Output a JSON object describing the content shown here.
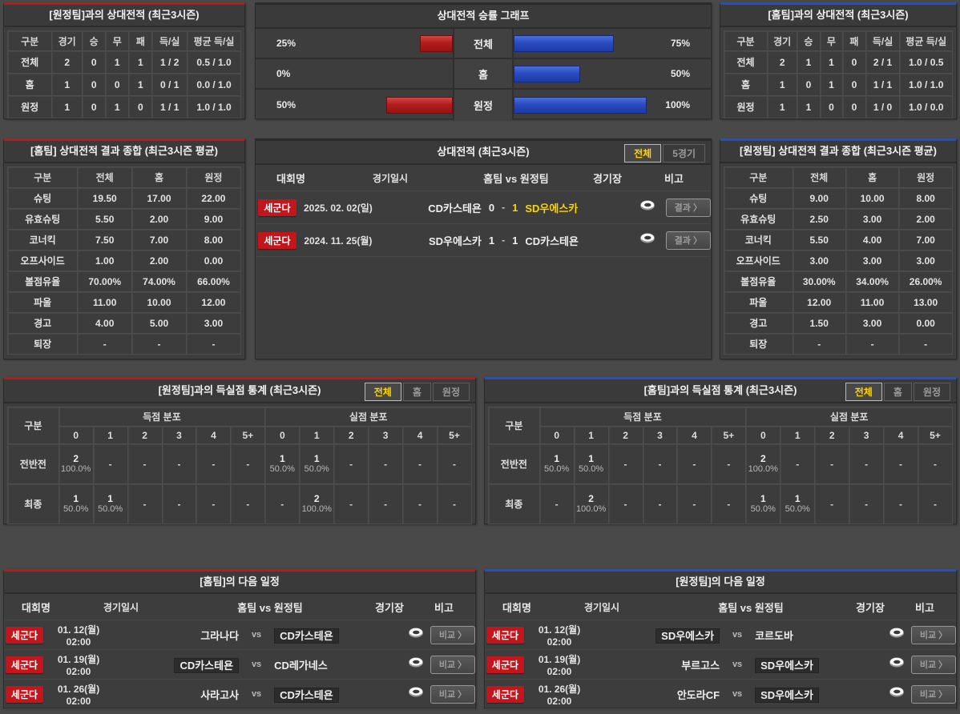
{
  "colors": {
    "page_bg": "#494949",
    "panel_bg": "#3d3d3d",
    "accent_red": "#c0161c",
    "accent_blue": "#1e4fd0",
    "bar_red": "#b21d1d",
    "bar_blue": "#2a4cc0",
    "highlight_yellow": "#ffd400",
    "badge_red": "#c3161c"
  },
  "vs_away_record": {
    "title": "[원정팀]과의 상대전적 (최근3시즌)",
    "headers": [
      "구분",
      "경기",
      "승",
      "무",
      "패",
      "득/실",
      "평균 득/실"
    ],
    "rows": [
      {
        "label": "전체",
        "cells": [
          "2",
          "0",
          "1",
          "1",
          "1 / 2",
          "0.5 / 1.0"
        ]
      },
      {
        "label": "홈",
        "cells": [
          "1",
          "0",
          "0",
          "1",
          "0 / 1",
          "0.0 / 1.0"
        ]
      },
      {
        "label": "원정",
        "cells": [
          "1",
          "0",
          "1",
          "0",
          "1 / 1",
          "1.0 / 1.0"
        ]
      }
    ]
  },
  "win_chart": {
    "title": "상대전적 승률 그래프",
    "rows": [
      {
        "label": "전체",
        "left_label": "25%",
        "left_value": 25,
        "right_label": "75%",
        "right_value": 75
      },
      {
        "label": "홈",
        "left_label": "0%",
        "left_value": 0,
        "right_label": "50%",
        "right_value": 50
      },
      {
        "label": "원정",
        "left_label": "50%",
        "left_value": 50,
        "right_label": "100%",
        "right_value": 100
      }
    ]
  },
  "chart_data": {
    "type": "bar",
    "title": "상대전적 승률 그래프",
    "categories": [
      "전체",
      "홈",
      "원정"
    ],
    "series": [
      {
        "name": "red-left",
        "values": [
          25,
          0,
          50
        ]
      },
      {
        "name": "blue-right",
        "values": [
          75,
          50,
          100
        ]
      }
    ],
    "xlim": [
      0,
      100
    ]
  },
  "vs_home_record": {
    "title": "[홈팀]과의 상대전적 (최근3시즌)",
    "headers": [
      "구분",
      "경기",
      "승",
      "무",
      "패",
      "득/실",
      "평균 득/실"
    ],
    "rows": [
      {
        "label": "전체",
        "cells": [
          "2",
          "1",
          "1",
          "0",
          "2 / 1",
          "1.0 / 0.5"
        ]
      },
      {
        "label": "홈",
        "cells": [
          "1",
          "0",
          "1",
          "0",
          "1 / 1",
          "1.0 / 1.0"
        ]
      },
      {
        "label": "원정",
        "cells": [
          "1",
          "1",
          "0",
          "0",
          "1 / 0",
          "1.0 / 0.0"
        ]
      }
    ]
  },
  "home_summary": {
    "title": "[홈팀] 상대전적 결과 종합 (최근3시즌 평균)",
    "headers": [
      "구분",
      "전체",
      "홈",
      "원정"
    ],
    "rows": [
      {
        "label": "슈팅",
        "cells": [
          "19.50",
          "17.00",
          "22.00"
        ]
      },
      {
        "label": "유효슈팅",
        "cells": [
          "5.50",
          "2.00",
          "9.00"
        ]
      },
      {
        "label": "코너킥",
        "cells": [
          "7.50",
          "7.00",
          "8.00"
        ]
      },
      {
        "label": "오프사이드",
        "cells": [
          "1.00",
          "2.00",
          "0.00"
        ]
      },
      {
        "label": "볼점유율",
        "cells": [
          "70.00%",
          "74.00%",
          "66.00%"
        ]
      },
      {
        "label": "파울",
        "cells": [
          "11.00",
          "10.00",
          "12.00"
        ]
      },
      {
        "label": "경고",
        "cells": [
          "4.00",
          "5.00",
          "3.00"
        ]
      },
      {
        "label": "퇴장",
        "cells": [
          "-",
          "-",
          "-"
        ]
      }
    ]
  },
  "away_summary": {
    "title": "[원정팀] 상대전적 결과 종합 (최근3시즌 평균)",
    "headers": [
      "구분",
      "전체",
      "홈",
      "원정"
    ],
    "rows": [
      {
        "label": "슈팅",
        "cells": [
          "9.00",
          "10.00",
          "8.00"
        ]
      },
      {
        "label": "유효슈팅",
        "cells": [
          "2.50",
          "3.00",
          "2.00"
        ]
      },
      {
        "label": "코너킥",
        "cells": [
          "5.50",
          "4.00",
          "7.00"
        ]
      },
      {
        "label": "오프사이드",
        "cells": [
          "3.00",
          "3.00",
          "3.00"
        ]
      },
      {
        "label": "볼점유율",
        "cells": [
          "30.00%",
          "34.00%",
          "26.00%"
        ]
      },
      {
        "label": "파울",
        "cells": [
          "12.00",
          "11.00",
          "13.00"
        ]
      },
      {
        "label": "경고",
        "cells": [
          "1.50",
          "3.00",
          "0.00"
        ]
      },
      {
        "label": "퇴장",
        "cells": [
          "-",
          "-",
          "-"
        ]
      }
    ]
  },
  "h2h": {
    "title": "상대전적 (최근3시즌)",
    "tabs": [
      "전체",
      "5경기"
    ],
    "active_tab": "전체",
    "headers": {
      "league": "대회명",
      "date": "경기일시",
      "teams": "홈팀 vs 원정팀",
      "venue": "경기장",
      "note": "비고"
    },
    "note_label": "결과 〉",
    "rows": [
      {
        "league": "세군다",
        "date": "2025. 02. 02(일)",
        "home": "CD카스테욘",
        "home_score": "0",
        "away_score": "1",
        "away": "SD우에스카",
        "winner": "away"
      },
      {
        "league": "세군다",
        "date": "2024. 11. 25(월)",
        "home": "SD우에스카",
        "home_score": "1",
        "away_score": "1",
        "away": "CD카스테욘",
        "winner": "draw"
      }
    ]
  },
  "goals_vs_away": {
    "title": "[원정팀]과의 득실점 통계 (최근3시즌)",
    "tabs": [
      "전체",
      "홈",
      "원정"
    ],
    "active_tab": "전체",
    "col_label": "구분",
    "group_headers": [
      "득점 분포",
      "실점 분포"
    ],
    "score_cols": [
      "0",
      "1",
      "2",
      "3",
      "4",
      "5+"
    ],
    "rows": [
      {
        "label": "전반전",
        "scored": [
          {
            "n": "2",
            "p": "100.0%"
          },
          null,
          null,
          null,
          null,
          null
        ],
        "conceded": [
          {
            "n": "1",
            "p": "50.0%"
          },
          {
            "n": "1",
            "p": "50.0%"
          },
          null,
          null,
          null,
          null
        ]
      },
      {
        "label": "최종",
        "scored": [
          {
            "n": "1",
            "p": "50.0%"
          },
          {
            "n": "1",
            "p": "50.0%"
          },
          null,
          null,
          null,
          null
        ],
        "conceded": [
          null,
          {
            "n": "2",
            "p": "100.0%"
          },
          null,
          null,
          null,
          null
        ]
      }
    ]
  },
  "goals_vs_home": {
    "title": "[홈팀]과의 득실점 통계 (최근3시즌)",
    "tabs": [
      "전체",
      "홈",
      "원정"
    ],
    "active_tab": "전체",
    "col_label": "구분",
    "group_headers": [
      "득점 분포",
      "실점 분포"
    ],
    "score_cols": [
      "0",
      "1",
      "2",
      "3",
      "4",
      "5+"
    ],
    "rows": [
      {
        "label": "전반전",
        "scored": [
          {
            "n": "1",
            "p": "50.0%"
          },
          {
            "n": "1",
            "p": "50.0%"
          },
          null,
          null,
          null,
          null
        ],
        "conceded": [
          {
            "n": "2",
            "p": "100.0%"
          },
          null,
          null,
          null,
          null,
          null
        ]
      },
      {
        "label": "최종",
        "scored": [
          null,
          {
            "n": "2",
            "p": "100.0%"
          },
          null,
          null,
          null,
          null
        ],
        "conceded": [
          {
            "n": "1",
            "p": "50.0%"
          },
          {
            "n": "1",
            "p": "50.0%"
          },
          null,
          null,
          null,
          null
        ]
      }
    ]
  },
  "home_schedule": {
    "title": "[홈팀]의 다음 일정",
    "headers": {
      "league": "대회명",
      "date": "경기일시",
      "teams": "홈팀 vs 원정팀",
      "venue": "경기장",
      "note": "비고"
    },
    "vs_label": "vs",
    "note_label": "비교 〉",
    "rows": [
      {
        "league": "세군다",
        "date": "01. 12(월) 02:00",
        "home": "그라나다",
        "away": "CD카스테욘",
        "highlight": "away"
      },
      {
        "league": "세군다",
        "date": "01. 19(월) 02:00",
        "home": "CD카스테욘",
        "away": "CD레가네스",
        "highlight": "home"
      },
      {
        "league": "세군다",
        "date": "01. 26(월) 02:00",
        "home": "사라고사",
        "away": "CD카스테욘",
        "highlight": "away"
      }
    ]
  },
  "away_schedule": {
    "title": "[원정팀]의 다음 일정",
    "headers": {
      "league": "대회명",
      "date": "경기일시",
      "teams": "홈팀 vs 원정팀",
      "venue": "경기장",
      "note": "비고"
    },
    "vs_label": "vs",
    "note_label": "비교 〉",
    "rows": [
      {
        "league": "세군다",
        "date": "01. 12(월) 02:00",
        "home": "SD우에스카",
        "away": "코르도바",
        "highlight": "home"
      },
      {
        "league": "세군다",
        "date": "01. 19(월) 02:00",
        "home": "부르고스",
        "away": "SD우에스카",
        "highlight": "away"
      },
      {
        "league": "세군다",
        "date": "01. 26(월) 02:00",
        "home": "안도라CF",
        "away": "SD우에스카",
        "highlight": "away"
      }
    ]
  }
}
